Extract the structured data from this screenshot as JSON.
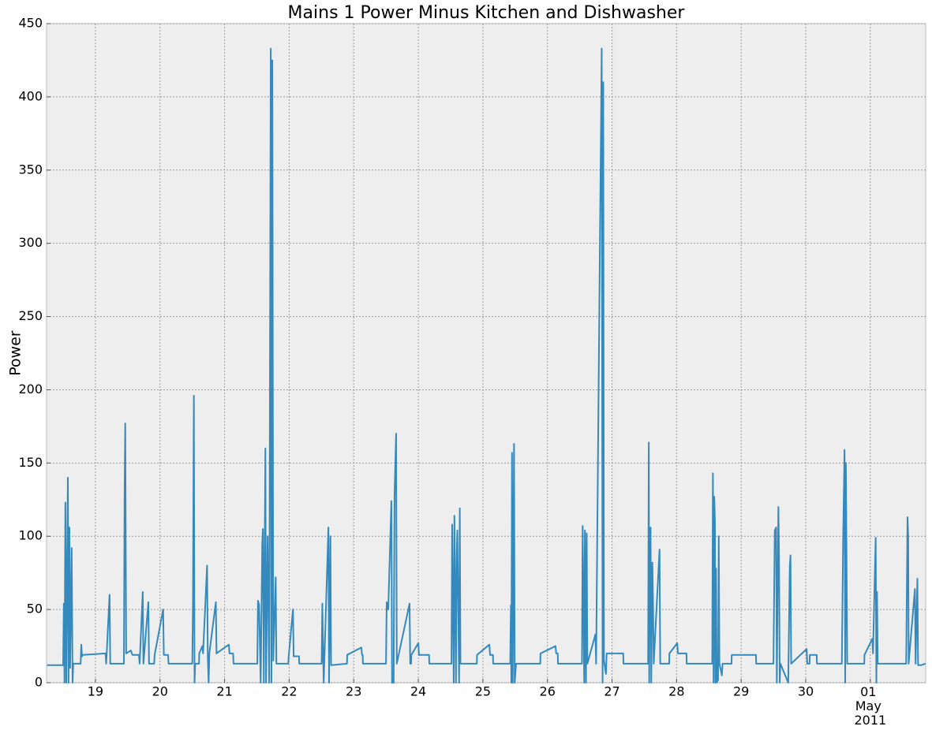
{
  "chart_data": {
    "type": "line",
    "title": "Mains 1 Power Minus Kitchen and Dishwasher",
    "ylabel": "Power",
    "color": "#348abd",
    "grid": true,
    "xlim": [
      "2011-04-18 05:50",
      "2011-05-01 20:35"
    ],
    "xticks": [
      {
        "value": "2011-04-19",
        "label": "19"
      },
      {
        "value": "2011-04-20",
        "label": "20"
      },
      {
        "value": "2011-04-21",
        "label": "21"
      },
      {
        "value": "2011-04-22",
        "label": "22"
      },
      {
        "value": "2011-04-23",
        "label": "23"
      },
      {
        "value": "2011-04-24",
        "label": "24"
      },
      {
        "value": "2011-04-25",
        "label": "25"
      },
      {
        "value": "2011-04-26",
        "label": "26"
      },
      {
        "value": "2011-04-27",
        "label": "27"
      },
      {
        "value": "2011-04-28",
        "label": "28"
      },
      {
        "value": "2011-04-29",
        "label": "29"
      },
      {
        "value": "2011-04-30",
        "label": "30"
      },
      {
        "value": "2011-05-01",
        "label": "01\nMay\n2011"
      }
    ],
    "ylim": [
      0,
      450
    ],
    "yticks": [
      0,
      50,
      100,
      150,
      200,
      250,
      300,
      350,
      400,
      450
    ],
    "x": [
      "2011-04-18 06:00",
      "2011-04-18 12:00",
      "2011-04-18 12:15",
      "2011-04-18 12:30",
      "2011-04-18 12:50",
      "2011-04-18 13:10",
      "2011-04-18 13:45",
      "2011-04-18 14:00",
      "2011-04-18 14:20",
      "2011-04-18 14:35",
      "2011-04-18 15:10",
      "2011-04-18 15:30",
      "2011-04-18 15:45",
      "2011-04-18 18:30",
      "2011-04-18 18:45",
      "2011-04-18 19:00",
      "2011-04-18 19:15",
      "2011-04-19 03:45",
      "2011-04-19 04:00",
      "2011-04-19 05:15",
      "2011-04-19 05:30",
      "2011-04-19 10:35",
      "2011-04-19 10:50",
      "2011-04-19 11:05",
      "2011-04-19 11:25",
      "2011-04-19 13:10",
      "2011-04-19 13:45",
      "2011-04-19 16:10",
      "2011-04-19 16:25",
      "2011-04-19 17:35",
      "2011-04-19 17:50",
      "2011-04-19 19:40",
      "2011-04-19 19:55",
      "2011-04-19 21:50",
      "2011-04-19 22:00",
      "2011-04-20 01:10",
      "2011-04-20 01:25",
      "2011-04-20 03:00",
      "2011-04-20 03:10",
      "2011-04-20 12:00",
      "2011-04-20 12:15",
      "2011-04-20 12:35",
      "2011-04-20 12:50",
      "2011-04-20 13:05",
      "2011-04-20 14:30",
      "2011-04-20 14:35",
      "2011-04-20 15:45",
      "2011-04-20 16:00",
      "2011-04-20 17:30",
      "2011-04-20 17:45",
      "2011-04-20 18:05",
      "2011-04-20 18:20",
      "2011-04-20 20:45",
      "2011-04-20 21:00",
      "2011-04-21 01:35",
      "2011-04-21 01:50",
      "2011-04-21 03:10",
      "2011-04-21 03:20",
      "2011-04-21 12:10",
      "2011-04-21 12:25",
      "2011-04-21 12:50",
      "2011-04-21 13:25",
      "2011-04-21 14:00",
      "2011-04-21 14:15",
      "2011-04-21 14:35",
      "2011-04-21 15:10",
      "2011-04-21 15:25",
      "2011-04-21 16:00",
      "2011-04-21 16:35",
      "2011-04-21 17:10",
      "2011-04-21 17:25",
      "2011-04-21 17:45",
      "2011-04-21 18:05",
      "2011-04-21 19:00",
      "2011-04-21 19:15",
      "2011-04-21 23:40",
      "2011-04-21 23:50",
      "2011-04-22 01:25",
      "2011-04-22 01:40",
      "2011-04-22 03:40",
      "2011-04-22 03:45",
      "2011-04-22 12:05",
      "2011-04-22 12:20",
      "2011-04-22 12:50",
      "2011-04-22 14:35",
      "2011-04-22 14:50",
      "2011-04-22 15:20",
      "2011-04-22 15:35",
      "2011-04-22 21:30",
      "2011-04-22 21:35",
      "2011-04-23 02:50",
      "2011-04-23 03:05",
      "2011-04-23 03:20",
      "2011-04-23 03:25",
      "2011-04-23 12:00",
      "2011-04-23 12:15",
      "2011-04-23 12:50",
      "2011-04-23 14:00",
      "2011-04-23 14:15",
      "2011-04-23 14:50",
      "2011-04-23 15:10",
      "2011-04-23 15:45",
      "2011-04-23 16:00",
      "2011-04-23 20:45",
      "2011-04-23 21:00",
      "2011-04-23 21:20",
      "2011-04-23 21:25",
      "2011-04-24 00:00",
      "2011-04-24 00:15",
      "2011-04-24 04:00",
      "2011-04-24 04:05",
      "2011-04-24 12:20",
      "2011-04-24 12:35",
      "2011-04-24 13:10",
      "2011-04-24 13:25",
      "2011-04-24 14:00",
      "2011-04-24 14:15",
      "2011-04-24 14:30",
      "2011-04-24 15:10",
      "2011-04-24 15:25",
      "2011-04-24 15:40",
      "2011-04-24 21:45",
      "2011-04-24 21:50",
      "2011-04-25 02:25",
      "2011-04-25 02:40",
      "2011-04-25 03:45",
      "2011-04-25 03:50",
      "2011-04-25 10:10",
      "2011-04-25 10:25",
      "2011-04-25 10:35",
      "2011-04-25 10:50",
      "2011-04-25 11:05",
      "2011-04-25 11:35",
      "2011-04-25 11:50",
      "2011-04-25 12:20",
      "2011-04-25 21:20",
      "2011-04-25 21:25",
      "2011-04-26 03:00",
      "2011-04-26 03:15",
      "2011-04-26 03:50",
      "2011-04-26 03:55",
      "2011-04-26 12:50",
      "2011-04-26 13:05",
      "2011-04-26 13:40",
      "2011-04-26 13:55",
      "2011-04-26 14:20",
      "2011-04-26 14:35",
      "2011-04-26 14:50",
      "2011-04-26 17:50",
      "2011-04-26 18:05",
      "2011-04-26 20:10",
      "2011-04-26 20:30",
      "2011-04-26 20:45",
      "2011-04-26 21:00",
      "2011-04-26 21:45",
      "2011-04-26 22:00",
      "2011-04-27 04:10",
      "2011-04-27 04:15",
      "2011-04-27 13:25",
      "2011-04-27 13:40",
      "2011-04-27 13:50",
      "2011-04-27 14:05",
      "2011-04-27 14:20",
      "2011-04-27 14:35",
      "2011-04-27 15:00",
      "2011-04-27 15:15",
      "2011-04-27 15:30",
      "2011-04-27 17:40",
      "2011-04-27 17:55",
      "2011-04-27 21:15",
      "2011-04-27 21:20",
      "2011-04-28 00:15",
      "2011-04-28 00:30",
      "2011-04-28 03:40",
      "2011-04-28 03:45",
      "2011-04-28 13:15",
      "2011-04-28 13:30",
      "2011-04-28 13:45",
      "2011-04-28 14:00",
      "2011-04-28 14:15",
      "2011-04-28 14:25",
      "2011-04-28 14:40",
      "2011-04-28 14:55",
      "2011-04-28 15:25",
      "2011-04-28 15:40",
      "2011-04-28 15:55",
      "2011-04-28 16:50",
      "2011-04-28 17:05",
      "2011-04-28 20:25",
      "2011-04-28 20:30",
      "2011-04-29 05:30",
      "2011-04-29 05:35",
      "2011-04-29 12:00",
      "2011-04-29 12:30",
      "2011-04-29 13:00",
      "2011-04-29 13:15",
      "2011-04-29 13:50",
      "2011-04-29 14:05",
      "2011-04-29 14:20",
      "2011-04-29 14:35",
      "2011-04-29 17:30",
      "2011-04-29 18:05",
      "2011-04-29 18:20",
      "2011-04-29 18:35",
      "2011-04-30 00:20",
      "2011-04-30 00:35",
      "2011-04-30 01:25",
      "2011-04-30 01:30",
      "2011-04-30 04:05",
      "2011-04-30 04:10",
      "2011-04-30 13:25",
      "2011-04-30 13:55",
      "2011-04-30 14:25",
      "2011-04-30 14:40",
      "2011-04-30 14:55",
      "2011-04-30 15:10",
      "2011-04-30 15:25",
      "2011-04-30 21:45",
      "2011-04-30 21:50",
      "2011-05-01 00:45",
      "2011-05-01 01:00",
      "2011-05-01 02:00",
      "2011-05-01 02:15",
      "2011-05-01 02:30",
      "2011-05-01 02:45",
      "2011-05-01 13:20",
      "2011-05-01 13:50",
      "2011-05-01 14:05",
      "2011-05-01 14:15",
      "2011-05-01 16:35",
      "2011-05-01 16:50",
      "2011-05-01 17:30",
      "2011-05-01 17:45",
      "2011-05-01 19:00",
      "2011-05-01 20:30"
    ],
    "values": [
      12,
      12,
      54,
      0,
      123,
      0,
      140,
      0,
      106,
      10,
      92,
      0,
      13,
      13,
      26,
      18,
      19,
      20,
      13,
      60,
      13,
      13,
      130,
      177,
      20,
      22,
      19,
      19,
      13,
      62,
      13,
      55,
      13,
      13,
      19,
      50,
      19,
      19,
      13,
      13,
      54,
      196,
      0,
      13,
      13,
      20,
      25,
      20,
      80,
      18,
      0,
      20,
      55,
      20,
      26,
      20,
      20,
      13,
      13,
      56,
      53,
      0,
      95,
      105,
      0,
      160,
      0,
      100,
      0,
      433,
      0,
      425,
      15,
      72,
      13,
      13,
      18,
      50,
      18,
      18,
      13,
      13,
      54,
      0,
      106,
      0,
      100,
      12,
      13,
      19,
      24,
      19,
      19,
      13,
      13,
      55,
      50,
      124,
      0,
      0,
      128,
      170,
      13,
      54,
      13,
      13,
      19,
      27,
      19,
      19,
      13,
      13,
      108,
      0,
      114,
      0,
      85,
      104,
      0,
      119,
      13,
      13,
      19,
      26,
      19,
      19,
      13,
      13,
      53,
      0,
      157,
      0,
      163,
      0,
      13,
      13,
      20,
      25,
      20,
      20,
      13,
      13,
      107,
      0,
      104,
      0,
      102,
      13,
      33,
      13,
      433,
      0,
      410,
      15,
      6,
      20,
      20,
      13,
      13,
      164,
      0,
      103,
      106,
      0,
      82,
      53,
      13,
      91,
      13,
      13,
      20,
      27,
      20,
      20,
      13,
      13,
      143,
      0,
      127,
      110,
      0,
      78,
      0,
      2,
      100,
      13,
      5,
      13,
      13,
      19,
      19,
      13,
      13,
      104,
      106,
      0,
      120,
      85,
      0,
      13,
      0,
      80,
      87,
      13,
      23,
      13,
      13,
      19,
      19,
      13,
      13,
      100,
      159,
      0,
      150,
      85,
      13,
      13,
      19,
      30,
      20,
      99,
      0,
      62,
      13,
      13,
      113,
      100,
      13,
      64,
      13,
      71,
      12,
      12,
      13
    ]
  }
}
